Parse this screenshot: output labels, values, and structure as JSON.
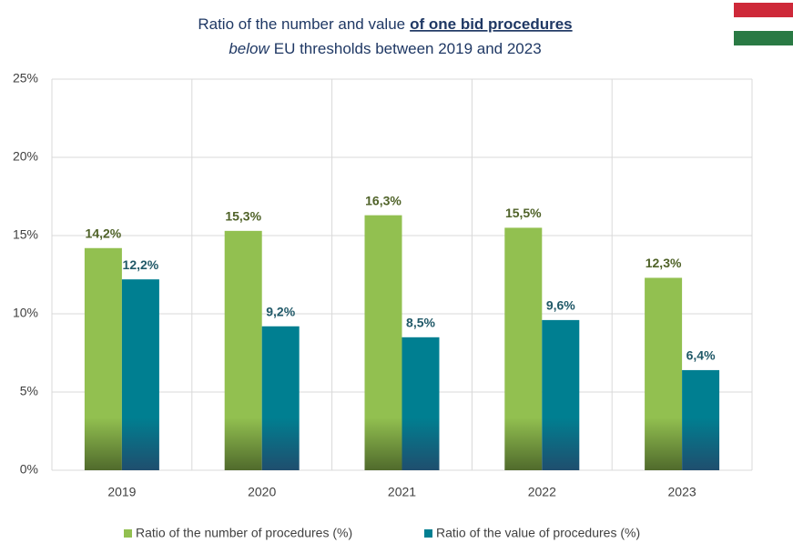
{
  "chart_data": {
    "type": "bar",
    "title": {
      "line1": [
        "Ratio of the number and value",
        "of one bid procedures"
      ],
      "line2": [
        "below",
        "EU thresholds between 2019 and 2023"
      ]
    },
    "categories": [
      "2019",
      "2020",
      "2021",
      "2022",
      "2023"
    ],
    "series": [
      {
        "name": "Ratio of the number of procedures (%)",
        "color": "#92c050",
        "label_color": "#4f6228",
        "values": [
          14.2,
          15.3,
          16.3,
          15.5,
          12.3
        ],
        "value_labels": [
          "14,2%",
          "15,3%",
          "16,3%",
          "15,5%",
          "12,3%"
        ]
      },
      {
        "name": "Ratio of the value of procedures (%)",
        "color": "#007f91",
        "label_color": "#215968",
        "values": [
          12.2,
          9.2,
          8.5,
          9.6,
          6.4
        ],
        "value_labels": [
          "12,2%",
          "9,2%",
          "8,5%",
          "9,6%",
          "6,4%"
        ]
      }
    ],
    "ylim": [
      0,
      25
    ],
    "yticks": [
      {
        "value": 0,
        "label": "0%"
      },
      {
        "value": 5,
        "label": "5%"
      },
      {
        "value": 10,
        "label": "10%"
      },
      {
        "value": 15,
        "label": "15%"
      },
      {
        "value": 20,
        "label": "20%"
      },
      {
        "value": 25,
        "label": "25%"
      }
    ],
    "grid": true,
    "legend": "bottom"
  }
}
